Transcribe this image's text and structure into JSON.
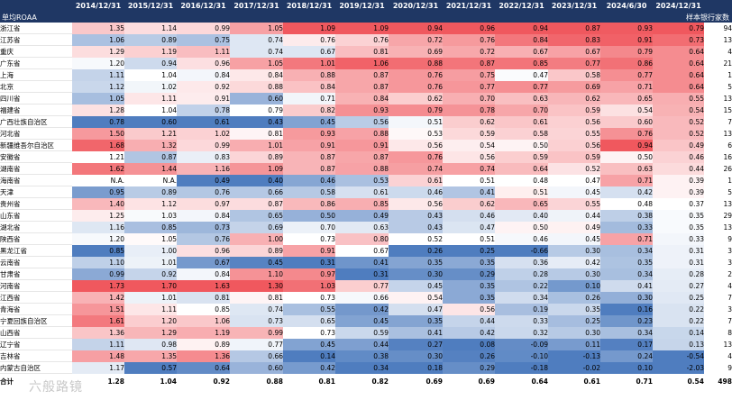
{
  "chart_data": {
    "type": "heatmap",
    "header": {
      "label": "单均ROAA",
      "count_label": "样本银行家数",
      "columns": [
        "2014/12/31",
        "2015/12/31",
        "2016/12/31",
        "2017/12/31",
        "2018/12/31",
        "2019/12/31",
        "2020/12/31",
        "2021/12/31",
        "2022/12/31",
        "2023/12/31",
        "2024/6/30",
        "2024/12/31"
      ]
    },
    "rows": [
      {
        "name": "浙江省",
        "values": [
          "1.35",
          "1.14",
          "0.99",
          "1.05",
          "1.09",
          "1.09",
          "0.94",
          "0.96",
          "0.94",
          "0.87",
          "0.93",
          "0.79"
        ],
        "count": "94"
      },
      {
        "name": "江苏省",
        "values": [
          "1.06",
          "0.89",
          "0.75",
          "0.74",
          "0.76",
          "0.76",
          "0.72",
          "0.76",
          "0.84",
          "0.83",
          "0.91",
          "0.73"
        ],
        "count": "13"
      },
      {
        "name": "重庆",
        "values": [
          "1.29",
          "1.19",
          "1.11",
          "0.74",
          "0.67",
          "0.81",
          "0.69",
          "0.72",
          "0.67",
          "0.67",
          "0.79",
          "0.64"
        ],
        "count": "4"
      },
      {
        "name": "广东省",
        "values": [
          "1.20",
          "0.94",
          "0.96",
          "1.05",
          "1.01",
          "1.06",
          "0.88",
          "0.87",
          "0.85",
          "0.77",
          "0.86",
          "0.64"
        ],
        "count": "21"
      },
      {
        "name": "上海",
        "values": [
          "1.11",
          "1.04",
          "0.84",
          "0.84",
          "0.88",
          "0.87",
          "0.76",
          "0.75",
          "0.47",
          "0.58",
          "0.77",
          "0.64"
        ],
        "count": "1"
      },
      {
        "name": "北京",
        "values": [
          "1.12",
          "1.02",
          "0.92",
          "0.88",
          "0.84",
          "0.87",
          "0.76",
          "0.77",
          "0.77",
          "0.69",
          "0.71",
          "0.64"
        ],
        "count": "5"
      },
      {
        "name": "四川省",
        "values": [
          "1.05",
          "1.11",
          "0.91",
          "0.60",
          "0.71",
          "0.84",
          "0.62",
          "0.70",
          "0.63",
          "0.62",
          "0.65",
          "0.55"
        ],
        "count": "13"
      },
      {
        "name": "福建省",
        "values": [
          "1.28",
          "1.04",
          "0.78",
          "0.79",
          "0.82",
          "0.93",
          "0.79",
          "0.78",
          "0.70",
          "0.59",
          "0.54",
          "0.54"
        ],
        "count": "15"
      },
      {
        "name": "广西壮族自治区",
        "values": [
          "0.78",
          "0.60",
          "0.61",
          "0.43",
          "0.45",
          "0.56",
          "0.51",
          "0.62",
          "0.61",
          "0.56",
          "0.60",
          "0.52"
        ],
        "count": "7"
      },
      {
        "name": "河北省",
        "values": [
          "1.50",
          "1.21",
          "1.02",
          "0.81",
          "0.93",
          "0.88",
          "0.53",
          "0.59",
          "0.58",
          "0.55",
          "0.76",
          "0.52"
        ],
        "count": "13"
      },
      {
        "name": "新疆维吾尔自治区",
        "values": [
          "1.68",
          "1.32",
          "0.99",
          "1.01",
          "0.91",
          "0.91",
          "0.56",
          "0.54",
          "0.50",
          "0.56",
          "0.94",
          "0.49"
        ],
        "count": "6"
      },
      {
        "name": "安徽省",
        "values": [
          "1.21",
          "0.87",
          "0.83",
          "0.89",
          "0.87",
          "0.87",
          "0.76",
          "0.56",
          "0.59",
          "0.59",
          "0.50",
          "0.46"
        ],
        "count": "16"
      },
      {
        "name": "湖南省",
        "values": [
          "1.62",
          "1.44",
          "1.16",
          "1.09",
          "0.87",
          "0.88",
          "0.74",
          "0.74",
          "0.64",
          "0.52",
          "0.63",
          "0.44"
        ],
        "count": "26"
      },
      {
        "name": "海南省",
        "values": [
          "N.A.",
          "N.A.",
          "0.49",
          "0.40",
          "0.46",
          "0.53",
          "0.61",
          "0.51",
          "0.48",
          "0.47",
          "0.71",
          "0.39"
        ],
        "count": "1"
      },
      {
        "name": "天津",
        "values": [
          "0.95",
          "0.89",
          "0.76",
          "0.66",
          "0.58",
          "0.61",
          "0.46",
          "0.41",
          "0.51",
          "0.45",
          "0.42",
          "0.39"
        ],
        "count": "5"
      },
      {
        "name": "贵州省",
        "values": [
          "1.40",
          "1.12",
          "0.97",
          "0.87",
          "0.86",
          "0.85",
          "0.56",
          "0.62",
          "0.65",
          "0.55",
          "0.48",
          "0.37"
        ],
        "count": "13"
      },
      {
        "name": "山东省",
        "values": [
          "1.25",
          "1.03",
          "0.84",
          "0.65",
          "0.50",
          "0.49",
          "0.43",
          "0.46",
          "0.40",
          "0.44",
          "0.38",
          "0.35"
        ],
        "count": "29"
      },
      {
        "name": "湖北省",
        "values": [
          "1.16",
          "0.85",
          "0.73",
          "0.69",
          "0.70",
          "0.63",
          "0.43",
          "0.47",
          "0.50",
          "0.49",
          "0.33",
          "0.35"
        ],
        "count": "13"
      },
      {
        "name": "陕西省",
        "values": [
          "1.20",
          "1.05",
          "0.76",
          "1.00",
          "0.73",
          "0.80",
          "0.52",
          "0.51",
          "0.46",
          "0.45",
          "0.71",
          "0.33"
        ],
        "count": "9"
      },
      {
        "name": "黑龙江省",
        "values": [
          "0.85",
          "1.00",
          "0.96",
          "0.89",
          "0.91",
          "0.67",
          "0.26",
          "0.25",
          "-0.66",
          "0.30",
          "0.34",
          "0.31"
        ],
        "count": "3"
      },
      {
        "name": "云南省",
        "values": [
          "1.10",
          "1.01",
          "0.67",
          "0.45",
          "0.31",
          "0.41",
          "0.35",
          "0.35",
          "0.36",
          "0.42",
          "0.35",
          "0.31"
        ],
        "count": "3"
      },
      {
        "name": "甘肃省",
        "values": [
          "0.99",
          "0.92",
          "0.84",
          "1.10",
          "0.97",
          "0.31",
          "0.30",
          "0.29",
          "0.28",
          "0.30",
          "0.34",
          "0.28"
        ],
        "count": "2"
      },
      {
        "name": "河南省",
        "values": [
          "1.73",
          "1.70",
          "1.63",
          "1.30",
          "1.03",
          "0.77",
          "0.45",
          "0.35",
          "0.22",
          "0.10",
          "0.41",
          "0.27"
        ],
        "count": "4"
      },
      {
        "name": "江西省",
        "values": [
          "1.42",
          "1.01",
          "0.81",
          "0.81",
          "0.73",
          "0.66",
          "0.54",
          "0.35",
          "0.34",
          "0.26",
          "0.30",
          "0.25"
        ],
        "count": "7"
      },
      {
        "name": "青海省",
        "values": [
          "1.51",
          "1.11",
          "0.85",
          "0.74",
          "0.55",
          "0.42",
          "0.47",
          "0.56",
          "0.19",
          "0.35",
          "0.16",
          "0.22"
        ],
        "count": "3"
      },
      {
        "name": "宁夏回族自治区",
        "values": [
          "1.61",
          "1.20",
          "1.06",
          "0.73",
          "0.65",
          "0.45",
          "0.35",
          "0.44",
          "0.33",
          "0.25",
          "0.23",
          "0.22"
        ],
        "count": "7"
      },
      {
        "name": "山西省",
        "values": [
          "1.36",
          "1.29",
          "1.19",
          "0.99",
          "0.73",
          "0.59",
          "0.41",
          "0.42",
          "0.32",
          "0.30",
          "0.34",
          "0.14"
        ],
        "count": "8"
      },
      {
        "name": "辽宁省",
        "values": [
          "1.11",
          "0.98",
          "0.89",
          "0.77",
          "0.45",
          "0.44",
          "0.27",
          "0.08",
          "-0.09",
          "0.11",
          "0.17",
          "0.13"
        ],
        "count": "13"
      },
      {
        "name": "吉林省",
        "values": [
          "1.48",
          "1.35",
          "1.36",
          "0.66",
          "0.14",
          "0.38",
          "0.30",
          "0.26",
          "-0.10",
          "-0.13",
          "0.24",
          "-0.54"
        ],
        "count": "4"
      },
      {
        "name": "内蒙古自治区",
        "values": [
          "1.17",
          "0.57",
          "0.64",
          "0.60",
          "0.42",
          "0.34",
          "0.18",
          "0.29",
          "-0.18",
          "-0.02",
          "0.10",
          "-2.03"
        ],
        "count": "9"
      }
    ],
    "totals": {
      "label": "合计",
      "values": [
        "1.28",
        "1.04",
        "0.92",
        "0.88",
        "0.81",
        "0.82",
        "0.69",
        "0.69",
        "0.64",
        "0.61",
        "0.71",
        "0.54"
      ],
      "count": "498"
    }
  },
  "watermark": "六般路镜",
  "colors": {
    "header_bg": "#1f3764",
    "low": "#4f7dbf",
    "mid": "#ffffff",
    "high": "#f0585e"
  }
}
